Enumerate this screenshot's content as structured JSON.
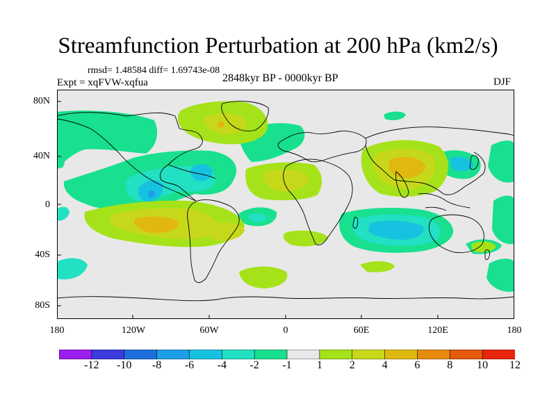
{
  "title": "Streamfunction Perturbation at 200 hPa (km2/s)",
  "stats_line": "rmsd= 1.48584 diff= 1.69743e-08",
  "experiment": "Expt = xqFVW-xqfua",
  "period": "2848kyr BP - 0000kyr BP",
  "season": "DJF",
  "y_ticks": [
    "80N",
    "40N",
    "0",
    "40S",
    "80S"
  ],
  "x_ticks": [
    "180",
    "120W",
    "60W",
    "0",
    "60E",
    "120E",
    "180"
  ],
  "colorbar": {
    "labels": [
      "-12",
      "-10",
      "-8",
      "-6",
      "-4",
      "-2",
      "-1",
      "1",
      "2",
      "4",
      "6",
      "8",
      "10",
      "12"
    ],
    "colors": [
      "#9b1df0",
      "#3b3bde",
      "#1e6fdc",
      "#1d9fe6",
      "#17c2e0",
      "#22e0c4",
      "#18e08e",
      "#e8e8e8",
      "#a5e21a",
      "#c7d81a",
      "#e0b80e",
      "#e68a0c",
      "#e65a0c",
      "#e8260c"
    ]
  },
  "map_data": {
    "projection": "cylindrical equidistant",
    "lon_range": [
      -180,
      180
    ],
    "lat_range": [
      -90,
      90
    ],
    "fill_colors": {
      "background": "#e8e8e8",
      "pos_1_2": "#a5e21a",
      "pos_2_4": "#c7d81a",
      "pos_4_6": "#e0b80e",
      "neg_1_2": "#18e08e",
      "neg_2_4": "#22e0c4",
      "neg_4_6": "#17c2e0",
      "neg_6_8": "#1d9fe6",
      "coast": "#000000"
    }
  }
}
